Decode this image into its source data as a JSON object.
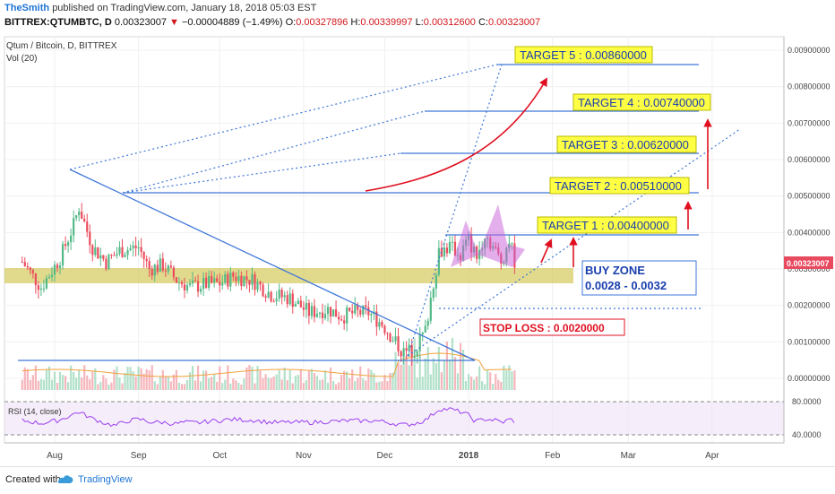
{
  "header": {
    "author": "TheSmith",
    "published": "published on TradingView.com, January 18, 2018 05:03 EST",
    "symbol": "BITTREX:QTUMBTC, D",
    "last": "0.00323007",
    "change": "−0.00004889 (−1.49%)",
    "ohlc": [
      {
        "k": "O:",
        "v": "0.00327896"
      },
      {
        "k": "H:",
        "v": "0.00339997"
      },
      {
        "k": "L:",
        "v": "0.00312600"
      },
      {
        "k": "C:",
        "v": "0.00323007"
      }
    ]
  },
  "legend": {
    "title": "Qtum / Bitcoin, D, BITTREX",
    "vol": "Vol (20)",
    "rsi": "RSI (14, close)"
  },
  "annotations": {
    "targets": [
      "TARGET 5 :  0.00860000",
      "TARGET 4 :  0.00740000",
      "TARGET 3 :  0.00620000",
      "TARGET 2 :  0.00510000",
      "TARGET 1 :  0.00400000"
    ],
    "buy_zone_title": "BUY ZONE",
    "buy_zone_range": "0.0028 - 0.0032",
    "stop_loss": "STOP LOSS : 0.0020000"
  },
  "colors": {
    "candle_up": "#53b987",
    "candle_down": "#eb4d5c",
    "price_badge": "#e84a5f",
    "line_blue": "#3f77d8",
    "zone_yellow": "#c8bb2f",
    "arrow_red": "#e01020",
    "rsi_purple": "#9a3df0"
  },
  "footer": {
    "created_with": "Created with",
    "brand": "TradingView"
  },
  "chart_data": {
    "type": "candlestick",
    "title": "Qtum / Bitcoin, D, BITTREX",
    "price_axis": {
      "ticks": [
        "0.00900000",
        "0.00800000",
        "0.00700000",
        "0.00600000",
        "0.00500000",
        "0.00400000",
        "0.00300000",
        "0.00200000",
        "0.00100000",
        "0.00000000"
      ],
      "current": "0.00323007"
    },
    "time_axis": [
      "Aug",
      "Sep",
      "Oct",
      "Nov",
      "Dec",
      "2018",
      "Feb",
      "Mar",
      "Apr"
    ],
    "rsi_axis": [
      "80.0000",
      "40.0000"
    ],
    "price_path": [
      [
        "2017-07-20",
        0.0032
      ],
      [
        "2017-07-27",
        0.0025
      ],
      [
        "2017-08-03",
        0.0033
      ],
      [
        "2017-08-08",
        0.0042
      ],
      [
        "2017-08-10",
        0.0047
      ],
      [
        "2017-08-15",
        0.0036
      ],
      [
        "2017-08-20",
        0.0032
      ],
      [
        "2017-08-25",
        0.0035
      ],
      [
        "2017-09-01",
        0.0036
      ],
      [
        "2017-09-05",
        0.003
      ],
      [
        "2017-09-10",
        0.0031
      ],
      [
        "2017-09-15",
        0.0027
      ],
      [
        "2017-09-20",
        0.0025
      ],
      [
        "2017-09-27",
        0.0026
      ],
      [
        "2017-10-01",
        0.0026
      ],
      [
        "2017-10-06",
        0.0028
      ],
      [
        "2017-10-13",
        0.0027
      ],
      [
        "2017-10-20",
        0.0023
      ],
      [
        "2017-10-27",
        0.0022
      ],
      [
        "2017-11-03",
        0.0018
      ],
      [
        "2017-11-10",
        0.0019
      ],
      [
        "2017-11-15",
        0.0017
      ],
      [
        "2017-11-20",
        0.0018
      ],
      [
        "2017-11-25",
        0.0018
      ],
      [
        "2017-11-30",
        0.0015
      ],
      [
        "2017-12-05",
        0.001
      ],
      [
        "2017-12-08",
        0.0007
      ],
      [
        "2017-12-12",
        0.0008
      ],
      [
        "2017-12-16",
        0.0013
      ],
      [
        "2017-12-18",
        0.0022
      ],
      [
        "2017-12-21",
        0.0035
      ],
      [
        "2017-12-25",
        0.0036
      ],
      [
        "2017-12-29",
        0.0034
      ],
      [
        "2018-01-01",
        0.0038
      ],
      [
        "2018-01-04",
        0.0033
      ],
      [
        "2018-01-07",
        0.004
      ],
      [
        "2018-01-10",
        0.0036
      ],
      [
        "2018-01-13",
        0.0032
      ],
      [
        "2018-01-16",
        0.0038
      ],
      [
        "2018-01-18",
        0.00323
      ]
    ],
    "levels": {
      "targets": [
        0.0086,
        0.0074,
        0.0062,
        0.0051,
        0.004
      ],
      "buy_zone": [
        0.0028,
        0.0032
      ],
      "stop_loss": 0.002
    }
  }
}
